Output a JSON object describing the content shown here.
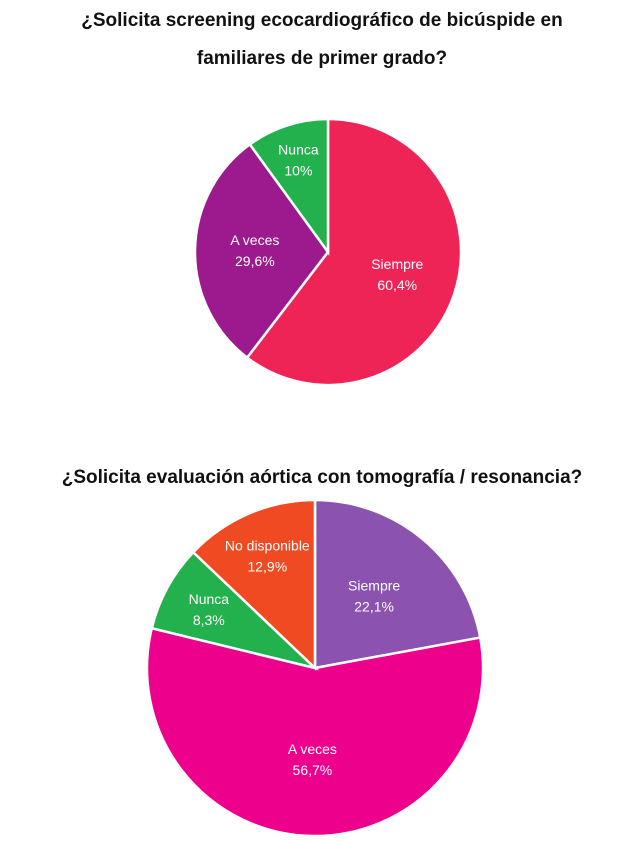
{
  "chart_data": [
    {
      "type": "pie",
      "title": "¿Solicita screening ecocardiográfico de bicúspide en familiares de primer grado?",
      "categories": [
        "Siempre",
        "A veces",
        "Nunca"
      ],
      "values": [
        60.4,
        29.6,
        10
      ],
      "value_labels": [
        "60,4%",
        "29,6%",
        "10%"
      ],
      "colors": [
        "#ee2456",
        "#9c1a8e",
        "#22b14c"
      ]
    },
    {
      "type": "pie",
      "title": "¿Solicita evaluación aórtica con tomografía / resonancia?",
      "categories": [
        "Siempre",
        "A veces",
        "Nunca",
        "No disponible"
      ],
      "values": [
        22.1,
        56.7,
        8.3,
        12.9
      ],
      "value_labels": [
        "22,1%",
        "56,7%",
        "8,3%",
        "12,9%"
      ],
      "colors": [
        "#8b52b0",
        "#ec008c",
        "#22b14c",
        "#f04a23"
      ]
    }
  ]
}
